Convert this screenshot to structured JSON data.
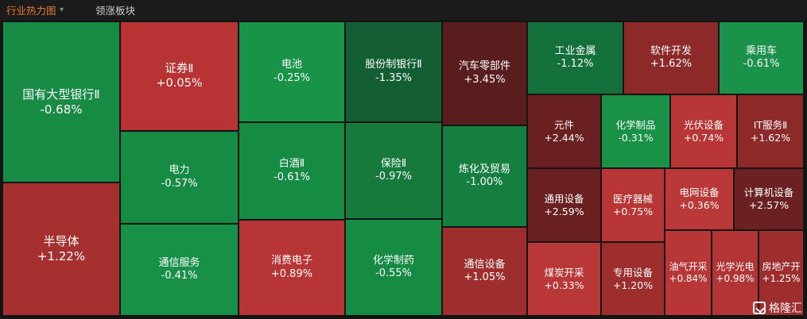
{
  "header": {
    "active_tab": "行业热力图",
    "other_tab": "领涨板块"
  },
  "watermark": "格隆汇",
  "colors": {
    "up": "#b83232",
    "down": "#138a45"
  },
  "chart_data": {
    "type": "heatmap",
    "value_unit": "%",
    "cells": [
      {
        "name": "国有大型银行Ⅱ",
        "change": "-0.68%",
        "value": -0.68
      },
      {
        "name": "半导体",
        "change": "+1.22%",
        "value": 1.22
      },
      {
        "name": "证券Ⅱ",
        "change": "+0.05%",
        "value": 0.05
      },
      {
        "name": "电力",
        "change": "-0.57%",
        "value": -0.57
      },
      {
        "name": "通信服务",
        "change": "-0.41%",
        "value": -0.41
      },
      {
        "name": "电池",
        "change": "-0.25%",
        "value": -0.25
      },
      {
        "name": "白酒Ⅱ",
        "change": "-0.61%",
        "value": -0.61
      },
      {
        "name": "消费电子",
        "change": "+0.89%",
        "value": 0.89
      },
      {
        "name": "股份制银行Ⅱ",
        "change": "-1.35%",
        "value": -1.35
      },
      {
        "name": "保险Ⅱ",
        "change": "-0.97%",
        "value": -0.97
      },
      {
        "name": "化学制药",
        "change": "-0.55%",
        "value": -0.55
      },
      {
        "name": "汽车零部件",
        "change": "+3.45%",
        "value": 3.45
      },
      {
        "name": "炼化及贸易",
        "change": "-1.00%",
        "value": -1.0
      },
      {
        "name": "通信设备",
        "change": "+1.05%",
        "value": 1.05
      },
      {
        "name": "工业金属",
        "change": "-1.12%",
        "value": -1.12
      },
      {
        "name": "软件开发",
        "change": "+1.62%",
        "value": 1.62
      },
      {
        "name": "乘用车",
        "change": "-0.61%",
        "value": -0.61
      },
      {
        "name": "元件",
        "change": "+2.44%",
        "value": 2.44
      },
      {
        "name": "化学制品",
        "change": "-0.31%",
        "value": -0.31
      },
      {
        "name": "光伏设备",
        "change": "+0.74%",
        "value": 0.74
      },
      {
        "name": "IT服务Ⅱ",
        "change": "+1.62%",
        "value": 1.62
      },
      {
        "name": "通用设备",
        "change": "+2.59%",
        "value": 2.59
      },
      {
        "name": "医疗器械",
        "change": "+0.75%",
        "value": 0.75
      },
      {
        "name": "电网设备",
        "change": "+0.36%",
        "value": 0.36
      },
      {
        "name": "计算机设备",
        "change": "+2.57%",
        "value": 2.57
      },
      {
        "name": "煤炭开采",
        "change": "+0.33%",
        "value": 0.33
      },
      {
        "name": "专用设备",
        "change": "+1.20%",
        "value": 1.2
      },
      {
        "name": "油气开采",
        "change": "+0.84%",
        "value": 0.84
      },
      {
        "name": "光学光电",
        "change": "+0.98%",
        "value": 0.98
      },
      {
        "name": "房地产开",
        "change": "+1.25%",
        "value": 1.25
      }
    ]
  }
}
